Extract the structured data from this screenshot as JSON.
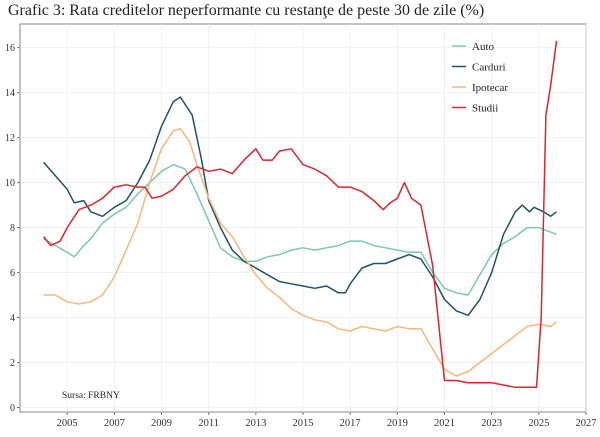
{
  "chart_data": {
    "type": "line",
    "title": "Grafic 3: Rata creditelor neperformante cu restanţe de peste 30 de zile (%)",
    "xlabel": "",
    "ylabel": "",
    "xlim": [
      2003,
      2027
    ],
    "ylim": [
      -0.2,
      17.05
    ],
    "xticks": [
      2005,
      2007,
      2009,
      2011,
      2013,
      2015,
      2017,
      2019,
      2021,
      2023,
      2025,
      2027
    ],
    "yticks": [
      0,
      2,
      4,
      6,
      8,
      10,
      12,
      14,
      16
    ],
    "grid": true,
    "legend_position": "top-right",
    "annotation": "Sursa: FRBNY",
    "series": [
      {
        "name": "Auto",
        "color": "#7cc8ae",
        "x": [
          2004,
          2004.5,
          2005,
          2005.3,
          2005.7,
          2006,
          2006.5,
          2007,
          2007.5,
          2008,
          2008.5,
          2009,
          2009.5,
          2010,
          2010.5,
          2011,
          2011.5,
          2012,
          2012.5,
          2013,
          2013.5,
          2014,
          2014.5,
          2015,
          2015.5,
          2016,
          2016.5,
          2017,
          2017.5,
          2018,
          2018.5,
          2019,
          2019.5,
          2020,
          2020.5,
          2021,
          2021.5,
          2022,
          2022.5,
          2023,
          2023.5,
          2024,
          2024.5,
          2025,
          2025.5,
          2025.75
        ],
        "y": [
          7.5,
          7.2,
          6.9,
          6.7,
          7.2,
          7.5,
          8.2,
          8.6,
          8.9,
          9.5,
          10.0,
          10.5,
          10.8,
          10.6,
          9.5,
          8.3,
          7.1,
          6.7,
          6.5,
          6.5,
          6.7,
          6.8,
          7.0,
          7.1,
          7.0,
          7.1,
          7.2,
          7.4,
          7.4,
          7.2,
          7.1,
          7.0,
          6.9,
          6.9,
          6.0,
          5.3,
          5.1,
          5.0,
          5.9,
          6.8,
          7.3,
          7.6,
          8.0,
          8.0,
          7.8,
          7.7
        ]
      },
      {
        "name": "Carduri",
        "color": "#1f5266",
        "x": [
          2004,
          2004.5,
          2005,
          2005.3,
          2005.7,
          2006,
          2006.5,
          2007,
          2007.5,
          2008,
          2008.5,
          2009,
          2009.5,
          2009.8,
          2010.3,
          2010.7,
          2011,
          2011.5,
          2012,
          2012.5,
          2013,
          2013.5,
          2014,
          2014.5,
          2015,
          2015.5,
          2016,
          2016.5,
          2016.8,
          2017,
          2017.5,
          2018,
          2018.5,
          2019,
          2019.5,
          2020,
          2020.5,
          2021,
          2021.5,
          2022,
          2022.5,
          2023,
          2023.5,
          2024,
          2024.3,
          2024.6,
          2024.8,
          2025.2,
          2025.5,
          2025.75
        ],
        "y": [
          10.9,
          10.3,
          9.7,
          9.1,
          9.2,
          8.7,
          8.5,
          8.9,
          9.2,
          10.0,
          11.0,
          12.5,
          13.6,
          13.8,
          13.0,
          11.0,
          9.2,
          8.0,
          7.0,
          6.5,
          6.2,
          5.9,
          5.6,
          5.5,
          5.4,
          5.3,
          5.4,
          5.1,
          5.1,
          5.5,
          6.2,
          6.4,
          6.4,
          6.6,
          6.8,
          6.6,
          5.8,
          4.8,
          4.3,
          4.1,
          4.8,
          6.0,
          7.7,
          8.7,
          9.0,
          8.7,
          8.9,
          8.7,
          8.5,
          8.7
        ]
      },
      {
        "name": "Ipotecar",
        "color": "#f3b87c",
        "x": [
          2004,
          2004.5,
          2005,
          2005.5,
          2006,
          2006.5,
          2007,
          2007.5,
          2008,
          2008.5,
          2009,
          2009.5,
          2009.8,
          2010.2,
          2010.5,
          2011,
          2011.5,
          2012,
          2012.5,
          2013,
          2013.5,
          2014,
          2014.5,
          2015,
          2015.5,
          2016,
          2016.5,
          2017,
          2017.5,
          2018,
          2018.5,
          2019,
          2019.5,
          2020,
          2020.5,
          2021,
          2021.5,
          2022,
          2022.5,
          2023,
          2023.5,
          2024,
          2024.5,
          2025,
          2025.5,
          2025.75
        ],
        "y": [
          5.0,
          5.0,
          4.7,
          4.6,
          4.7,
          5.0,
          5.8,
          7.0,
          8.2,
          10.0,
          11.5,
          12.3,
          12.4,
          11.8,
          10.8,
          9.3,
          8.2,
          7.6,
          6.7,
          5.9,
          5.3,
          4.9,
          4.4,
          4.1,
          3.9,
          3.8,
          3.5,
          3.4,
          3.6,
          3.5,
          3.4,
          3.6,
          3.5,
          3.5,
          2.6,
          1.7,
          1.4,
          1.6,
          2.0,
          2.4,
          2.8,
          3.2,
          3.6,
          3.7,
          3.6,
          3.8
        ]
      },
      {
        "name": "Studii",
        "color": "#d9272e",
        "x": [
          2004,
          2004.3,
          2004.7,
          2005,
          2005.5,
          2006,
          2006.5,
          2007,
          2007.5,
          2008,
          2008.3,
          2008.6,
          2009,
          2009.5,
          2010,
          2010.5,
          2011,
          2011.5,
          2012,
          2012.5,
          2013,
          2013.3,
          2013.7,
          2014,
          2014.5,
          2015,
          2015.5,
          2016,
          2016.5,
          2017,
          2017.5,
          2018,
          2018.4,
          2018.7,
          2019,
          2019.3,
          2019.6,
          2020,
          2020.5,
          2021,
          2021.5,
          2022,
          2022.5,
          2023,
          2023.5,
          2024,
          2024.5,
          2024.9,
          2025.1,
          2025.3,
          2025.5,
          2025.75
        ],
        "y": [
          7.6,
          7.2,
          7.4,
          8.0,
          8.8,
          9.0,
          9.3,
          9.8,
          9.9,
          9.8,
          9.8,
          9.3,
          9.4,
          9.7,
          10.3,
          10.7,
          10.5,
          10.6,
          10.4,
          11.0,
          11.5,
          11.0,
          11.0,
          11.4,
          11.5,
          10.8,
          10.6,
          10.3,
          9.8,
          9.8,
          9.6,
          9.2,
          8.8,
          9.1,
          9.3,
          10.0,
          9.3,
          9.0,
          6.3,
          1.2,
          1.2,
          1.1,
          1.1,
          1.1,
          1.0,
          0.9,
          0.9,
          0.9,
          4.0,
          13.0,
          14.3,
          16.3
        ]
      }
    ]
  }
}
